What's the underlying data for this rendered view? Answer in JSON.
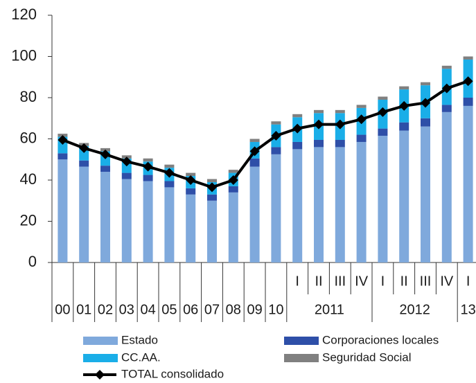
{
  "chart_data": {
    "type": "bar",
    "stacked": true,
    "categories": [
      null,
      null,
      null,
      null,
      null,
      null,
      null,
      null,
      null,
      null,
      null,
      "I",
      "II",
      "III",
      "IV",
      "I",
      "II",
      "III",
      "IV",
      "I"
    ],
    "groups": [
      "00",
      "01",
      "02",
      "03",
      "04",
      "05",
      "06",
      "07",
      "08",
      "09",
      "10",
      "2011",
      null,
      null,
      null,
      "2012",
      null,
      null,
      null,
      "13"
    ],
    "ylim": [
      0,
      120
    ],
    "yticks": [
      0,
      20,
      40,
      60,
      80,
      100,
      120
    ],
    "grid": false,
    "series": [
      {
        "name": "Estado",
        "color": "#7fa9dc",
        "values": [
          50,
          46.5,
          44,
          40.5,
          39.5,
          36.5,
          33,
          30,
          34,
          46.5,
          52.5,
          55,
          56,
          56,
          58.5,
          61.5,
          64,
          66,
          73,
          76
        ]
      },
      {
        "name": "Corporaciones locales",
        "color": "#2e4fa8",
        "values": [
          3,
          3,
          3,
          3,
          3,
          3,
          3,
          3,
          3,
          4,
          3.5,
          3.5,
          3.5,
          3.5,
          3.5,
          3.5,
          4,
          4,
          3.5,
          4
        ]
      },
      {
        "name": "CC.AA.",
        "color": "#1aaee8",
        "values": [
          8,
          7,
          7,
          7,
          6.5,
          6.5,
          6,
          6,
          6.5,
          8,
          11,
          12,
          13,
          13,
          13,
          14,
          16,
          16,
          17.5,
          18.5
        ]
      },
      {
        "name": "Seguridad Social",
        "color": "#808080",
        "values": [
          1.5,
          1.5,
          1.5,
          1.5,
          1.5,
          1.5,
          1.5,
          1.5,
          1.5,
          1.5,
          1.5,
          1.5,
          1.5,
          1.5,
          1.5,
          1.5,
          1.5,
          1.5,
          1.5,
          1.5
        ]
      },
      {
        "name": "TOTAL consolidado",
        "type": "line",
        "color": "#000000",
        "values": [
          59.5,
          55.5,
          52.5,
          49,
          46.5,
          43.5,
          40,
          36.5,
          40,
          54,
          61.5,
          65,
          67,
          67,
          69.5,
          73,
          76,
          77.5,
          84.5,
          88
        ]
      }
    ]
  }
}
